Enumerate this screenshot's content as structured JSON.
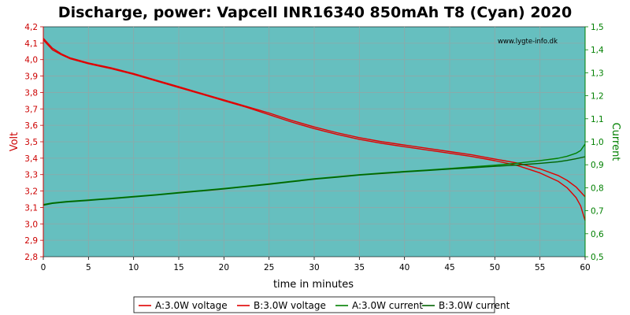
{
  "chart_data": {
    "type": "line",
    "title": "Discharge, power: Vapcell INR16340 850mAh T8 (Cyan) 2020",
    "xlabel": "time in minutes",
    "ylabel_left": "Volt",
    "ylabel_right": "Current",
    "watermark": "www.lygte-info.dk",
    "xlim": [
      0,
      60
    ],
    "ylim_left": [
      2.8,
      4.2
    ],
    "ylim_right": [
      0.5,
      1.5
    ],
    "x_ticks": [
      "0",
      "5",
      "10",
      "15",
      "20",
      "25",
      "30",
      "35",
      "40",
      "45",
      "50",
      "55",
      "60"
    ],
    "y_left_ticks": [
      "2,8",
      "2,9",
      "3,0",
      "3,1",
      "3,2",
      "3,3",
      "3,4",
      "3,5",
      "3,6",
      "3,7",
      "3,8",
      "3,9",
      "4,0",
      "4,1",
      "4,2"
    ],
    "y_right_ticks": [
      "0,5",
      "0,6",
      "0,7",
      "0,8",
      "0,9",
      "1,0",
      "1,1",
      "1,2",
      "1,3",
      "1,4",
      "1,5"
    ],
    "grid": true,
    "legend_position": "bottom",
    "colors": {
      "plot_bg": "#66BFBF",
      "grid": "#8FA8A8",
      "voltage": "#E00000",
      "current": "#008000",
      "left_axis": "#CC0000",
      "right_axis": "#008000"
    },
    "series": [
      {
        "name": "A:3.0W voltage",
        "axis": "left",
        "color": "#E00000",
        "points": [
          [
            0,
            4.12
          ],
          [
            0.5,
            4.09
          ],
          [
            1,
            4.06
          ],
          [
            2,
            4.03
          ],
          [
            3,
            4.005
          ],
          [
            5,
            3.975
          ],
          [
            7.5,
            3.945
          ],
          [
            10,
            3.91
          ],
          [
            12.5,
            3.87
          ],
          [
            15,
            3.83
          ],
          [
            17.5,
            3.79
          ],
          [
            20,
            3.75
          ],
          [
            22.5,
            3.71
          ],
          [
            25,
            3.665
          ],
          [
            27.5,
            3.62
          ],
          [
            30,
            3.58
          ],
          [
            32.5,
            3.545
          ],
          [
            35,
            3.515
          ],
          [
            37.5,
            3.49
          ],
          [
            40,
            3.47
          ],
          [
            42.5,
            3.45
          ],
          [
            45,
            3.43
          ],
          [
            47.5,
            3.41
          ],
          [
            50,
            3.385
          ],
          [
            52.5,
            3.355
          ],
          [
            55,
            3.31
          ],
          [
            57,
            3.26
          ],
          [
            58,
            3.22
          ],
          [
            59,
            3.16
          ],
          [
            59.5,
            3.11
          ],
          [
            60,
            3.02
          ]
        ]
      },
      {
        "name": "B:3.0W voltage",
        "axis": "left",
        "color": "#E00000",
        "points": [
          [
            0,
            4.13
          ],
          [
            0.5,
            4.1
          ],
          [
            1,
            4.07
          ],
          [
            2,
            4.035
          ],
          [
            3,
            4.01
          ],
          [
            5,
            3.98
          ],
          [
            7.5,
            3.95
          ],
          [
            10,
            3.915
          ],
          [
            12.5,
            3.875
          ],
          [
            15,
            3.835
          ],
          [
            17.5,
            3.795
          ],
          [
            20,
            3.755
          ],
          [
            22.5,
            3.715
          ],
          [
            25,
            3.675
          ],
          [
            27.5,
            3.63
          ],
          [
            30,
            3.59
          ],
          [
            32.5,
            3.555
          ],
          [
            35,
            3.525
          ],
          [
            37.5,
            3.5
          ],
          [
            40,
            3.48
          ],
          [
            42.5,
            3.46
          ],
          [
            45,
            3.44
          ],
          [
            47.5,
            3.42
          ],
          [
            50,
            3.395
          ],
          [
            52.5,
            3.37
          ],
          [
            55,
            3.335
          ],
          [
            57,
            3.295
          ],
          [
            58,
            3.265
          ],
          [
            59,
            3.225
          ],
          [
            60,
            3.165
          ]
        ]
      },
      {
        "name": "A:3.0W current",
        "axis": "right",
        "color": "#008000",
        "points": [
          [
            0,
            0.727
          ],
          [
            1,
            0.734
          ],
          [
            2.5,
            0.74
          ],
          [
            5,
            0.747
          ],
          [
            7.5,
            0.754
          ],
          [
            10,
            0.762
          ],
          [
            12.5,
            0.77
          ],
          [
            15,
            0.779
          ],
          [
            17.5,
            0.788
          ],
          [
            20,
            0.797
          ],
          [
            22.5,
            0.807
          ],
          [
            25,
            0.817
          ],
          [
            27.5,
            0.828
          ],
          [
            30,
            0.839
          ],
          [
            32.5,
            0.848
          ],
          [
            35,
            0.857
          ],
          [
            37.5,
            0.864
          ],
          [
            40,
            0.871
          ],
          [
            42.5,
            0.877
          ],
          [
            45,
            0.884
          ],
          [
            47.5,
            0.891
          ],
          [
            50,
            0.898
          ],
          [
            52.5,
            0.907
          ],
          [
            55,
            0.918
          ],
          [
            57,
            0.928
          ],
          [
            58,
            0.937
          ],
          [
            59,
            0.95
          ],
          [
            59.5,
            0.962
          ],
          [
            60,
            0.99
          ]
        ]
      },
      {
        "name": "B:3.0W current",
        "axis": "right",
        "color": "#006400",
        "points": [
          [
            0,
            0.724
          ],
          [
            1,
            0.732
          ],
          [
            2.5,
            0.738
          ],
          [
            5,
            0.745
          ],
          [
            7.5,
            0.752
          ],
          [
            10,
            0.76
          ],
          [
            12.5,
            0.768
          ],
          [
            15,
            0.777
          ],
          [
            17.5,
            0.786
          ],
          [
            20,
            0.795
          ],
          [
            22.5,
            0.805
          ],
          [
            25,
            0.815
          ],
          [
            27.5,
            0.826
          ],
          [
            30,
            0.837
          ],
          [
            32.5,
            0.846
          ],
          [
            35,
            0.855
          ],
          [
            37.5,
            0.862
          ],
          [
            40,
            0.869
          ],
          [
            42.5,
            0.875
          ],
          [
            45,
            0.881
          ],
          [
            47.5,
            0.887
          ],
          [
            50,
            0.893
          ],
          [
            52.5,
            0.899
          ],
          [
            55,
            0.906
          ],
          [
            57,
            0.913
          ],
          [
            58,
            0.919
          ],
          [
            59,
            0.926
          ],
          [
            60,
            0.935
          ]
        ]
      }
    ]
  }
}
